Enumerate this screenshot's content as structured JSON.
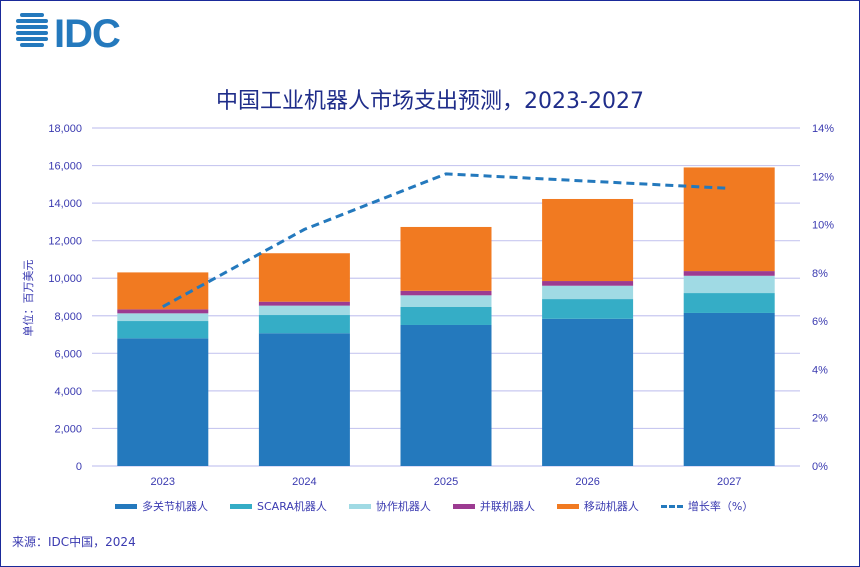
{
  "logo": "IDC",
  "chart_data": {
    "type": "bar",
    "stacked": true,
    "title": "中国工业机器人市场支出预测，2023-2027",
    "ylabel": "单位：百万美元",
    "ylim": [
      0,
      18000
    ],
    "y_ticks": [
      "0",
      "2,000",
      "4,000",
      "6,000",
      "8,000",
      "10,000",
      "12,000",
      "14,000",
      "16,000",
      "18,000"
    ],
    "y2lim": [
      0,
      14
    ],
    "y2_ticks": [
      "0%",
      "2%",
      "4%",
      "6%",
      "8%",
      "10%",
      "12%",
      "14%"
    ],
    "grid": true,
    "legend_position": "bottom",
    "categories": [
      "2023",
      "2024",
      "2025",
      "2026",
      "2027"
    ],
    "series": [
      {
        "name": "多关节机器人",
        "color": "#2479bd",
        "values": [
          6800,
          7070,
          7510,
          7840,
          8150
        ]
      },
      {
        "name": "SCARA机器人",
        "color": "#35adc6",
        "values": [
          920,
          970,
          970,
          1050,
          1060
        ]
      },
      {
        "name": "协作机器人",
        "color": "#a0dae4",
        "values": [
          410,
          500,
          610,
          710,
          920
        ]
      },
      {
        "name": "并联机器人",
        "color": "#9c3b91",
        "values": [
          210,
          210,
          240,
          250,
          250
        ]
      },
      {
        "name": "移动机器人",
        "color": "#f17a21",
        "values": [
          1970,
          2580,
          3400,
          4370,
          5520
        ]
      }
    ],
    "line_series": {
      "name": "增长率（%）",
      "color": "#2479bd",
      "axis": "right",
      "values": [
        6.6,
        9.8,
        12.1,
        11.8,
        11.5
      ]
    }
  },
  "source": "来源：IDC中国，2024"
}
